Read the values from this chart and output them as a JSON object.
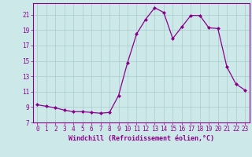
{
  "x": [
    0,
    1,
    2,
    3,
    4,
    5,
    6,
    7,
    8,
    9,
    10,
    11,
    12,
    13,
    14,
    15,
    16,
    17,
    18,
    19,
    20,
    21,
    22,
    23
  ],
  "y": [
    9.3,
    9.1,
    8.9,
    8.6,
    8.4,
    8.4,
    8.3,
    8.2,
    8.3,
    10.5,
    14.8,
    18.5,
    20.4,
    21.9,
    21.3,
    17.9,
    19.4,
    20.9,
    20.9,
    19.3,
    19.2,
    14.2,
    12.0,
    11.2
  ],
  "line_color": "#8b008b",
  "marker": "D",
  "marker_size": 2.0,
  "bg_color": "#cce8e8",
  "grid_color": "#aacccc",
  "xlabel": "Windchill (Refroidissement éolien,°C)",
  "xlabel_color": "#8b008b",
  "tick_color": "#8b008b",
  "ylim": [
    7,
    22.5
  ],
  "xlim": [
    -0.5,
    23.5
  ],
  "yticks": [
    7,
    9,
    11,
    13,
    15,
    17,
    19,
    21
  ],
  "xticks": [
    0,
    1,
    2,
    3,
    4,
    5,
    6,
    7,
    8,
    9,
    10,
    11,
    12,
    13,
    14,
    15,
    16,
    17,
    18,
    19,
    20,
    21,
    22,
    23
  ],
  "spine_color": "#8b008b",
  "tick_fontsize": 5.5,
  "xlabel_fontsize": 6.0
}
